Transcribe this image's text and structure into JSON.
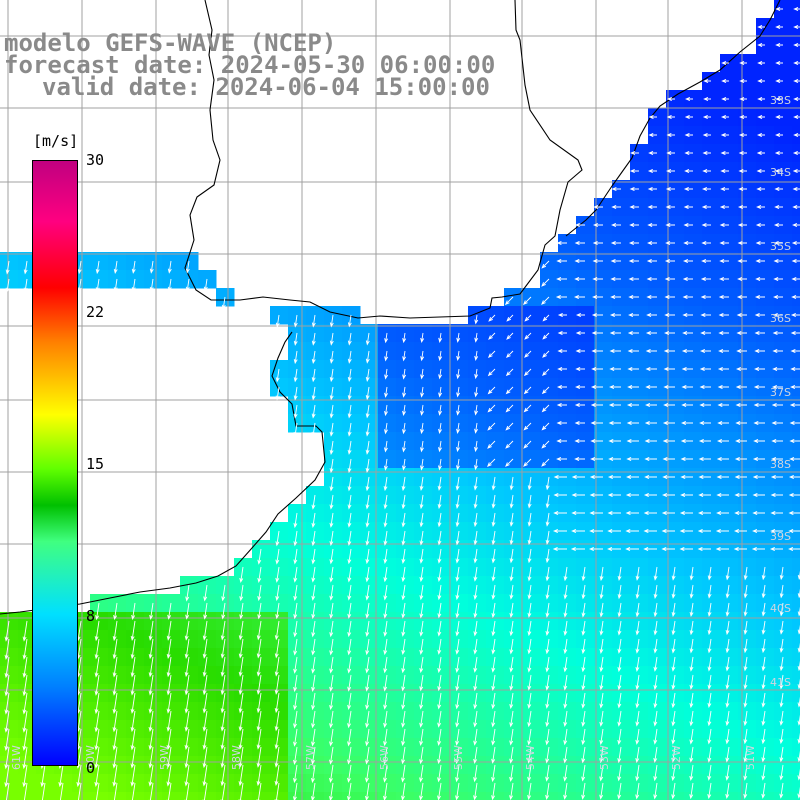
{
  "title": {
    "line1": "modelo GEFS-WAVE (NCEP)",
    "line2": "forecast date: 2024-05-30 06:00:00",
    "line3": "valid date: 2024-06-04 15:00:00"
  },
  "colorbar": {
    "units": "[m/s]",
    "ticks": [
      "30",
      "22",
      "15",
      "8",
      "0"
    ],
    "tick_values": [
      30,
      22,
      15,
      8,
      0
    ],
    "colors": [
      "#0000ff",
      "#0080ff",
      "#00e0ff",
      "#40ff80",
      "#00c000",
      "#60ff00",
      "#ffff00",
      "#ff8000",
      "#ff0000",
      "#ff0080",
      "#c00080"
    ]
  },
  "map": {
    "lon_labels": [
      "61W",
      "60W",
      "59W",
      "58W",
      "57W",
      "56W",
      "55W",
      "54W",
      "53W",
      "52W",
      "51W"
    ],
    "lat_labels": [
      "33S",
      "34S",
      "35S",
      "36S",
      "37S",
      "38S",
      "39S",
      "40S",
      "41S"
    ],
    "land_color": "#ffffff",
    "grid_color": "#a0a0a0",
    "coast_color": "#000000",
    "arrow_color": "#ffffff"
  }
}
